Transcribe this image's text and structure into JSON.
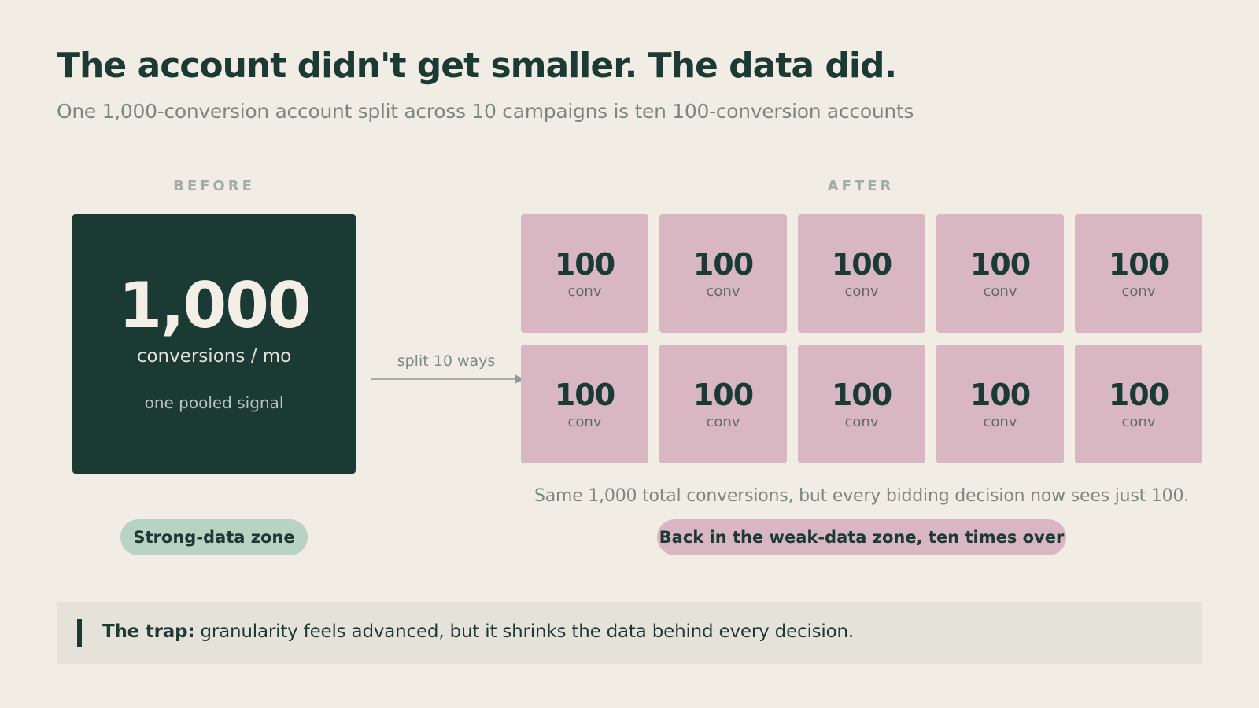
{
  "header": {
    "title": "The account didn't get smaller. The data did.",
    "subtitle": "One 1,000-conversion account split across 10 campaigns is ten 100-conversion accounts"
  },
  "before": {
    "label": "BEFORE",
    "value": "1,000",
    "unit": "conversions / mo",
    "note": "one pooled signal",
    "badge": "Strong-data zone"
  },
  "arrow": {
    "label": "split 10 ways"
  },
  "after": {
    "label": "AFTER",
    "tiles": [
      {
        "value": "100",
        "unit": "conv"
      },
      {
        "value": "100",
        "unit": "conv"
      },
      {
        "value": "100",
        "unit": "conv"
      },
      {
        "value": "100",
        "unit": "conv"
      },
      {
        "value": "100",
        "unit": "conv"
      },
      {
        "value": "100",
        "unit": "conv"
      },
      {
        "value": "100",
        "unit": "conv"
      },
      {
        "value": "100",
        "unit": "conv"
      },
      {
        "value": "100",
        "unit": "conv"
      },
      {
        "value": "100",
        "unit": "conv"
      }
    ],
    "note": "Same 1,000 total conversions, but every bidding decision now sees just 100.",
    "badge": "Back in the weak-data zone, ten times over"
  },
  "callout": {
    "lead": "The trap:",
    "text": " granularity feels advanced, but it shrinks the data behind every decision."
  },
  "colors": {
    "background": "#f1ede5",
    "dark_green": "#1c3a34",
    "pink": "#d9b7c2",
    "mint": "#b8d2c4",
    "callout_bg": "#e5e2da"
  }
}
